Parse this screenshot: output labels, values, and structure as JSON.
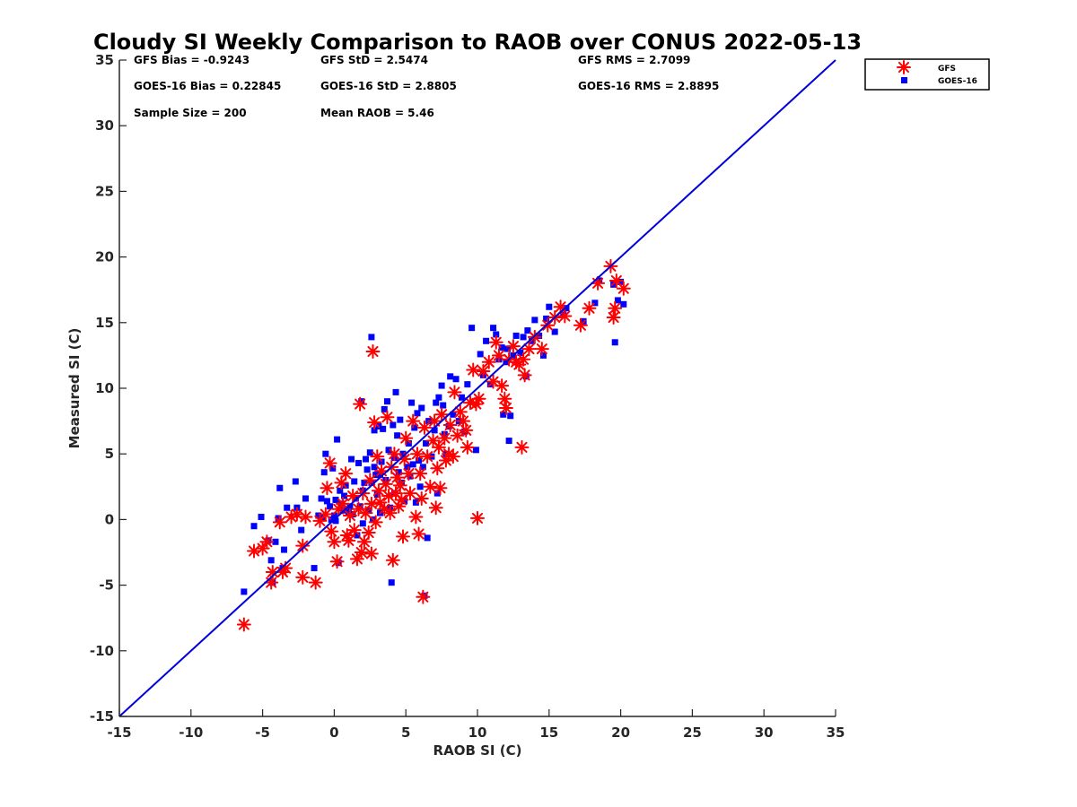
{
  "chart_data": {
    "type": "scatter",
    "title": "Cloudy SI Weekly Comparison to RAOB over CONUS 2022-05-13",
    "xlabel": "RAOB SI (C)",
    "ylabel": "Measured SI (C)",
    "xlim": [
      -15,
      35
    ],
    "ylim": [
      -15,
      35
    ],
    "xticks": [
      "-15",
      "-10",
      "-5",
      "0",
      "5",
      "10",
      "15",
      "20",
      "25",
      "30",
      "35"
    ],
    "yticks": [
      "-15",
      "-10",
      "-5",
      "0",
      "5",
      "10",
      "15",
      "20",
      "25",
      "30",
      "35"
    ],
    "grid": false,
    "legend_position": "outside top-right",
    "reference_line": {
      "x": [
        -15,
        35
      ],
      "y": [
        -15,
        35
      ],
      "color": "#0000dd"
    },
    "stats": [
      "GFS Bias = -0.9243",
      "GFS StD = 2.5474",
      "GFS RMS = 2.7099",
      "GOES-16 Bias = 0.22845",
      "GOES-16 StD = 2.8805",
      "GOES-16 RMS = 2.8895",
      "Sample Size = 200",
      "Mean RAOB = 5.46"
    ],
    "series": [
      {
        "name": "GFS",
        "marker": "asterisk",
        "color": "#ff0000",
        "points": [
          [
            -6.3,
            -8.0
          ],
          [
            -5.6,
            -2.4
          ],
          [
            -5.0,
            -2.2
          ],
          [
            -4.7,
            -1.7
          ],
          [
            -4.4,
            -4.8
          ],
          [
            -4.3,
            -4.0
          ],
          [
            -3.8,
            -0.2
          ],
          [
            -3.6,
            -4.0
          ],
          [
            -3.4,
            -3.7
          ],
          [
            -3.0,
            0.2
          ],
          [
            -2.6,
            0.4
          ],
          [
            -2.2,
            -2.0
          ],
          [
            -2.0,
            0.2
          ],
          [
            -2.2,
            -4.4
          ],
          [
            -1.3,
            -4.8
          ],
          [
            -1.0,
            -0.1
          ],
          [
            -0.6,
            0.4
          ],
          [
            -0.5,
            2.4
          ],
          [
            -0.3,
            4.3
          ],
          [
            -0.2,
            -0.9
          ],
          [
            0.0,
            -1.7
          ],
          [
            0.2,
            -3.2
          ],
          [
            0.3,
            0.8
          ],
          [
            0.5,
            2.8
          ],
          [
            0.6,
            1.2
          ],
          [
            0.8,
            3.5
          ],
          [
            0.9,
            -1.2
          ],
          [
            1.0,
            -1.6
          ],
          [
            1.1,
            0.3
          ],
          [
            1.3,
            1.8
          ],
          [
            1.4,
            -0.8
          ],
          [
            1.6,
            -3.0
          ],
          [
            1.7,
            0.8
          ],
          [
            1.8,
            8.8
          ],
          [
            1.9,
            -2.5
          ],
          [
            2.0,
            2.0
          ],
          [
            2.1,
            -1.7
          ],
          [
            2.2,
            0.5
          ],
          [
            2.4,
            -1.0
          ],
          [
            2.5,
            3.0
          ],
          [
            2.6,
            1.2
          ],
          [
            2.6,
            -2.6
          ],
          [
            2.7,
            12.8
          ],
          [
            2.8,
            7.4
          ],
          [
            2.9,
            -0.2
          ],
          [
            3.0,
            4.8
          ],
          [
            3.1,
            2.2
          ],
          [
            3.2,
            1.3
          ],
          [
            3.3,
            3.7
          ],
          [
            3.5,
            0.8
          ],
          [
            3.6,
            2.7
          ],
          [
            3.7,
            7.8
          ],
          [
            3.8,
            1.8
          ],
          [
            3.9,
            0.5
          ],
          [
            4.0,
            4.0
          ],
          [
            4.1,
            -3.1
          ],
          [
            4.2,
            5.0
          ],
          [
            4.3,
            2.0
          ],
          [
            4.4,
            3.2
          ],
          [
            4.5,
            1.0
          ],
          [
            4.6,
            2.6
          ],
          [
            4.7,
            1.5
          ],
          [
            4.8,
            -1.3
          ],
          [
            4.9,
            4.6
          ],
          [
            5.0,
            6.2
          ],
          [
            5.2,
            3.5
          ],
          [
            5.3,
            2.0
          ],
          [
            5.5,
            7.5
          ],
          [
            5.7,
            0.2
          ],
          [
            5.8,
            5.0
          ],
          [
            5.9,
            -1.1
          ],
          [
            6.0,
            3.5
          ],
          [
            6.1,
            1.6
          ],
          [
            6.2,
            -5.9
          ],
          [
            6.3,
            7.0
          ],
          [
            6.5,
            4.8
          ],
          [
            6.7,
            2.5
          ],
          [
            6.9,
            6.0
          ],
          [
            7.0,
            7.5
          ],
          [
            7.1,
            0.9
          ],
          [
            7.2,
            3.9
          ],
          [
            7.3,
            5.5
          ],
          [
            7.4,
            2.4
          ],
          [
            7.5,
            8.0
          ],
          [
            7.7,
            6.2
          ],
          [
            7.8,
            4.5
          ],
          [
            8.0,
            5.0
          ],
          [
            8.1,
            7.2
          ],
          [
            8.3,
            4.8
          ],
          [
            8.4,
            9.7
          ],
          [
            8.6,
            6.4
          ],
          [
            8.8,
            8.2
          ],
          [
            9.0,
            7.5
          ],
          [
            9.2,
            6.8
          ],
          [
            9.3,
            5.5
          ],
          [
            9.5,
            8.9
          ],
          [
            9.7,
            11.4
          ],
          [
            9.9,
            8.8
          ],
          [
            10.0,
            0.1
          ],
          [
            10.1,
            9.2
          ],
          [
            10.4,
            11.3
          ],
          [
            10.8,
            12.0
          ],
          [
            11.1,
            10.5
          ],
          [
            11.3,
            13.5
          ],
          [
            11.5,
            12.5
          ],
          [
            11.7,
            10.2
          ],
          [
            11.9,
            9.2
          ],
          [
            12.0,
            8.5
          ],
          [
            12.2,
            12.2
          ],
          [
            12.5,
            13.2
          ],
          [
            12.7,
            12.0
          ],
          [
            12.9,
            11.8
          ],
          [
            13.1,
            5.5
          ],
          [
            13.2,
            12.2
          ],
          [
            13.3,
            11.0
          ],
          [
            13.6,
            13.0
          ],
          [
            14.0,
            13.9
          ],
          [
            14.5,
            13.0
          ],
          [
            14.9,
            14.8
          ],
          [
            15.4,
            15.4
          ],
          [
            15.8,
            16.2
          ],
          [
            16.1,
            15.5
          ],
          [
            17.2,
            14.8
          ],
          [
            17.8,
            16.1
          ],
          [
            18.4,
            18.0
          ],
          [
            19.3,
            19.3
          ],
          [
            19.5,
            15.4
          ],
          [
            19.6,
            16.1
          ],
          [
            19.7,
            18.2
          ],
          [
            20.2,
            17.6
          ]
        ]
      },
      {
        "name": "GOES-16",
        "marker": "square",
        "color": "#0000ff",
        "points": [
          [
            -6.3,
            -5.5
          ],
          [
            -5.6,
            -0.5
          ],
          [
            -5.1,
            0.2
          ],
          [
            -4.6,
            -1.6
          ],
          [
            -4.4,
            -3.1
          ],
          [
            -4.3,
            -4.8
          ],
          [
            -4.1,
            -1.7
          ],
          [
            -3.9,
            0.1
          ],
          [
            -3.8,
            2.4
          ],
          [
            -3.6,
            -3.7
          ],
          [
            -3.5,
            -2.3
          ],
          [
            -3.3,
            0.9
          ],
          [
            -2.7,
            2.9
          ],
          [
            -2.6,
            0.9
          ],
          [
            -2.3,
            -0.8
          ],
          [
            -2.0,
            1.6
          ],
          [
            -1.4,
            -3.7
          ],
          [
            -1.1,
            0.3
          ],
          [
            -0.9,
            1.6
          ],
          [
            -0.8,
            0.2
          ],
          [
            -0.7,
            3.6
          ],
          [
            -0.6,
            5.0
          ],
          [
            -0.5,
            1.4
          ],
          [
            -0.3,
            1.0
          ],
          [
            -0.2,
            0.0
          ],
          [
            -0.1,
            3.9
          ],
          [
            0.0,
            0.3
          ],
          [
            0.1,
            -0.1
          ],
          [
            0.1,
            1.5
          ],
          [
            0.2,
            6.1
          ],
          [
            0.3,
            -3.3
          ],
          [
            0.4,
            2.2
          ],
          [
            0.5,
            1.2
          ],
          [
            0.6,
            0.7
          ],
          [
            0.7,
            1.8
          ],
          [
            0.8,
            2.6
          ],
          [
            1.0,
            0.6
          ],
          [
            1.1,
            1.0
          ],
          [
            1.2,
            4.6
          ],
          [
            1.3,
            0.4
          ],
          [
            1.4,
            2.9
          ],
          [
            1.5,
            1.6
          ],
          [
            1.6,
            -1.2
          ],
          [
            1.7,
            4.3
          ],
          [
            1.8,
            1.0
          ],
          [
            1.9,
            9.0
          ],
          [
            2.0,
            2.2
          ],
          [
            2.0,
            -0.3
          ],
          [
            2.1,
            2.8
          ],
          [
            2.2,
            4.6
          ],
          [
            2.3,
            3.8
          ],
          [
            2.4,
            0.7
          ],
          [
            2.5,
            5.1
          ],
          [
            2.6,
            13.9
          ],
          [
            2.6,
            2.8
          ],
          [
            2.7,
            0.0
          ],
          [
            2.8,
            4.0
          ],
          [
            2.8,
            6.8
          ],
          [
            2.9,
            3.4
          ],
          [
            3.0,
            1.9
          ],
          [
            3.1,
            7.1
          ],
          [
            3.2,
            3.4
          ],
          [
            3.2,
            0.5
          ],
          [
            3.3,
            4.4
          ],
          [
            3.4,
            6.9
          ],
          [
            3.5,
            8.4
          ],
          [
            3.6,
            3.0
          ],
          [
            3.7,
            9.0
          ],
          [
            3.8,
            5.3
          ],
          [
            3.9,
            0.9
          ],
          [
            4.0,
            -4.8
          ],
          [
            4.1,
            7.2
          ],
          [
            4.2,
            4.7
          ],
          [
            4.2,
            2.0
          ],
          [
            4.3,
            9.7
          ],
          [
            4.4,
            6.4
          ],
          [
            4.5,
            3.6
          ],
          [
            4.6,
            7.6
          ],
          [
            4.7,
            2.8
          ],
          [
            4.8,
            5.0
          ],
          [
            4.9,
            1.4
          ],
          [
            5.1,
            4.0
          ],
          [
            5.2,
            5.8
          ],
          [
            5.3,
            3.3
          ],
          [
            5.4,
            8.9
          ],
          [
            5.5,
            4.2
          ],
          [
            5.6,
            7.0
          ],
          [
            5.7,
            1.3
          ],
          [
            5.8,
            8.1
          ],
          [
            5.9,
            4.5
          ],
          [
            6.0,
            2.5
          ],
          [
            6.1,
            8.5
          ],
          [
            6.2,
            4.0
          ],
          [
            6.3,
            -5.8
          ],
          [
            6.4,
            5.8
          ],
          [
            6.5,
            -1.4
          ],
          [
            6.6,
            7.5
          ],
          [
            6.8,
            4.8
          ],
          [
            7.0,
            6.8
          ],
          [
            7.1,
            8.9
          ],
          [
            7.2,
            2.0
          ],
          [
            7.3,
            9.3
          ],
          [
            7.5,
            10.2
          ],
          [
            7.6,
            8.7
          ],
          [
            7.7,
            6.5
          ],
          [
            7.8,
            5.0
          ],
          [
            8.0,
            7.1
          ],
          [
            8.1,
            10.9
          ],
          [
            8.3,
            8.0
          ],
          [
            8.5,
            10.7
          ],
          [
            8.7,
            7.5
          ],
          [
            8.9,
            9.3
          ],
          [
            9.1,
            6.7
          ],
          [
            9.3,
            10.3
          ],
          [
            9.6,
            14.6
          ],
          [
            9.9,
            5.3
          ],
          [
            10.2,
            12.6
          ],
          [
            10.4,
            11.0
          ],
          [
            10.6,
            13.6
          ],
          [
            10.9,
            10.3
          ],
          [
            11.1,
            14.6
          ],
          [
            11.3,
            14.1
          ],
          [
            11.5,
            12.2
          ],
          [
            11.7,
            13.1
          ],
          [
            11.8,
            8.0
          ],
          [
            12.0,
            12.0
          ],
          [
            12.1,
            13.0
          ],
          [
            12.2,
            6.0
          ],
          [
            12.3,
            7.9
          ],
          [
            12.5,
            12.5
          ],
          [
            12.7,
            14.0
          ],
          [
            13.0,
            12.7
          ],
          [
            13.2,
            13.9
          ],
          [
            13.4,
            10.9
          ],
          [
            13.5,
            14.4
          ],
          [
            13.8,
            13.6
          ],
          [
            14.0,
            15.2
          ],
          [
            14.3,
            14.0
          ],
          [
            14.6,
            12.5
          ],
          [
            14.8,
            15.3
          ],
          [
            15.0,
            16.2
          ],
          [
            15.4,
            14.3
          ],
          [
            16.0,
            15.6
          ],
          [
            16.2,
            16.1
          ],
          [
            17.4,
            15.1
          ],
          [
            18.2,
            16.5
          ],
          [
            18.5,
            18.2
          ],
          [
            19.5,
            17.9
          ],
          [
            19.6,
            13.5
          ],
          [
            19.8,
            16.7
          ],
          [
            20.0,
            18.1
          ],
          [
            20.2,
            16.4
          ]
        ]
      }
    ]
  }
}
